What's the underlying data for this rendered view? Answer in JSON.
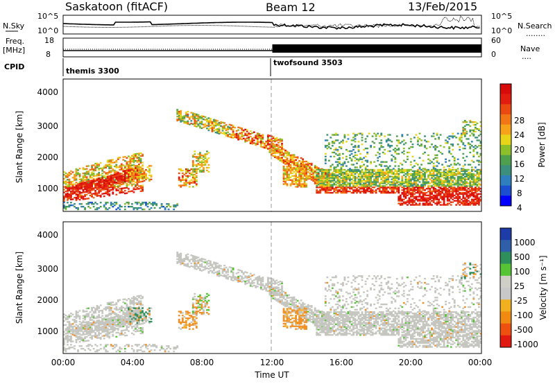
{
  "header": {
    "station": "Saskatoon (fitACF)",
    "beam": "Beam 12",
    "date": "13/Feb/2015"
  },
  "side_labels": {
    "nsky": "N.Sky",
    "nsearch": "N.Search",
    "freq_top": "Freq.",
    "freq_unit": "[MHz]",
    "nave": "Nave",
    "cpid": "CPID",
    "dots": "........",
    "dots_short": "...."
  },
  "chart_data": [
    {
      "type": "line",
      "panel": "noise",
      "left_axis": {
        "label": "N.Sky",
        "ticks": [
          "10^5",
          "10^0"
        ]
      },
      "right_axis": {
        "label": "N.Search",
        "ticks": [
          "10^5",
          "10^0"
        ]
      }
    },
    {
      "type": "line",
      "panel": "frequency-nave",
      "left_axis": {
        "label": "Freq. [MHz]",
        "ticks": [
          "18",
          "8"
        ],
        "range": [
          8,
          18
        ]
      },
      "right_axis": {
        "label": "Nave",
        "ticks": [
          "60",
          "0"
        ],
        "range": [
          0,
          60
        ]
      }
    },
    {
      "type": "table",
      "panel": "cpid",
      "label": "CPID",
      "modes": [
        {
          "name": "themis 3300",
          "start_hour": 0
        },
        {
          "name": "twofsound 3503",
          "start_hour": 12
        }
      ]
    },
    {
      "type": "heatmap",
      "panel": "power",
      "ylabel": "Slant Range [km]",
      "yticks": [
        "4000",
        "3000",
        "2000",
        "1000"
      ],
      "ylim": [
        200,
        4600
      ],
      "colorbar": {
        "label": "Power [dB]",
        "ticks": [
          "28",
          "24",
          "20",
          "16",
          "12",
          "8",
          "4"
        ],
        "range": [
          0,
          30
        ],
        "colors": [
          "#0000ff",
          "#1b4fd0",
          "#2f7fbf",
          "#3c8f7c",
          "#4ea04e",
          "#8cbf2a",
          "#e8d51a",
          "#f6a21a",
          "#f07616",
          "#ea4a12",
          "#e11d10",
          "#d80b0b"
        ]
      }
    },
    {
      "type": "heatmap",
      "panel": "velocity",
      "ylabel": "Slant Range [km]",
      "yticks": [
        "4000",
        "3000",
        "2000",
        "1000"
      ],
      "ylim": [
        200,
        4600
      ],
      "colorbar": {
        "label": "Velocity [m s⁻¹]",
        "ticks": [
          "1000",
          "500",
          "100",
          "25",
          "-25",
          "-100",
          "-500",
          "-1000"
        ],
        "colors": [
          "#1e3ca8",
          "#2f5fa8",
          "#2e8f5c",
          "#56c434",
          "#cfcfc8",
          "#c8c8c8",
          "#f0b020",
          "#f08a10",
          "#ee5010",
          "#e01a10"
        ]
      },
      "x": {
        "label": "Time UT",
        "ticks": [
          "00:00",
          "04:00",
          "08:00",
          "12:00",
          "16:00",
          "20:00",
          "00:00"
        ],
        "range_hours": [
          0,
          24
        ]
      }
    }
  ]
}
